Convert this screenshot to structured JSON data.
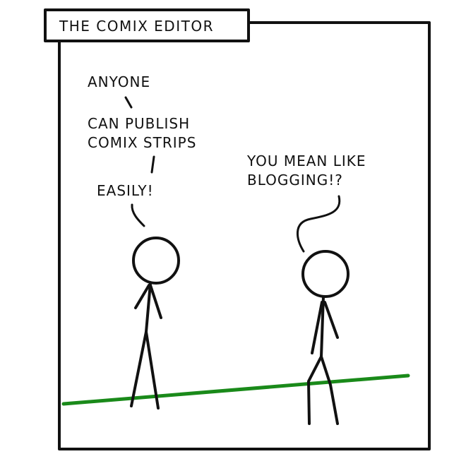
{
  "title": "THE COMIX EDITOR",
  "speaker_left": {
    "line1": "ANYONE",
    "line2": "CAN PUBLISH",
    "line3": "COMIX STRIPS",
    "line4": "EASILY!"
  },
  "speaker_right": {
    "line1": "YOU MEAN LIKE",
    "line2": "BLOGGING!?"
  },
  "colors": {
    "ink": "#111111",
    "ground": "#1a8a1a",
    "background": "#ffffff"
  }
}
